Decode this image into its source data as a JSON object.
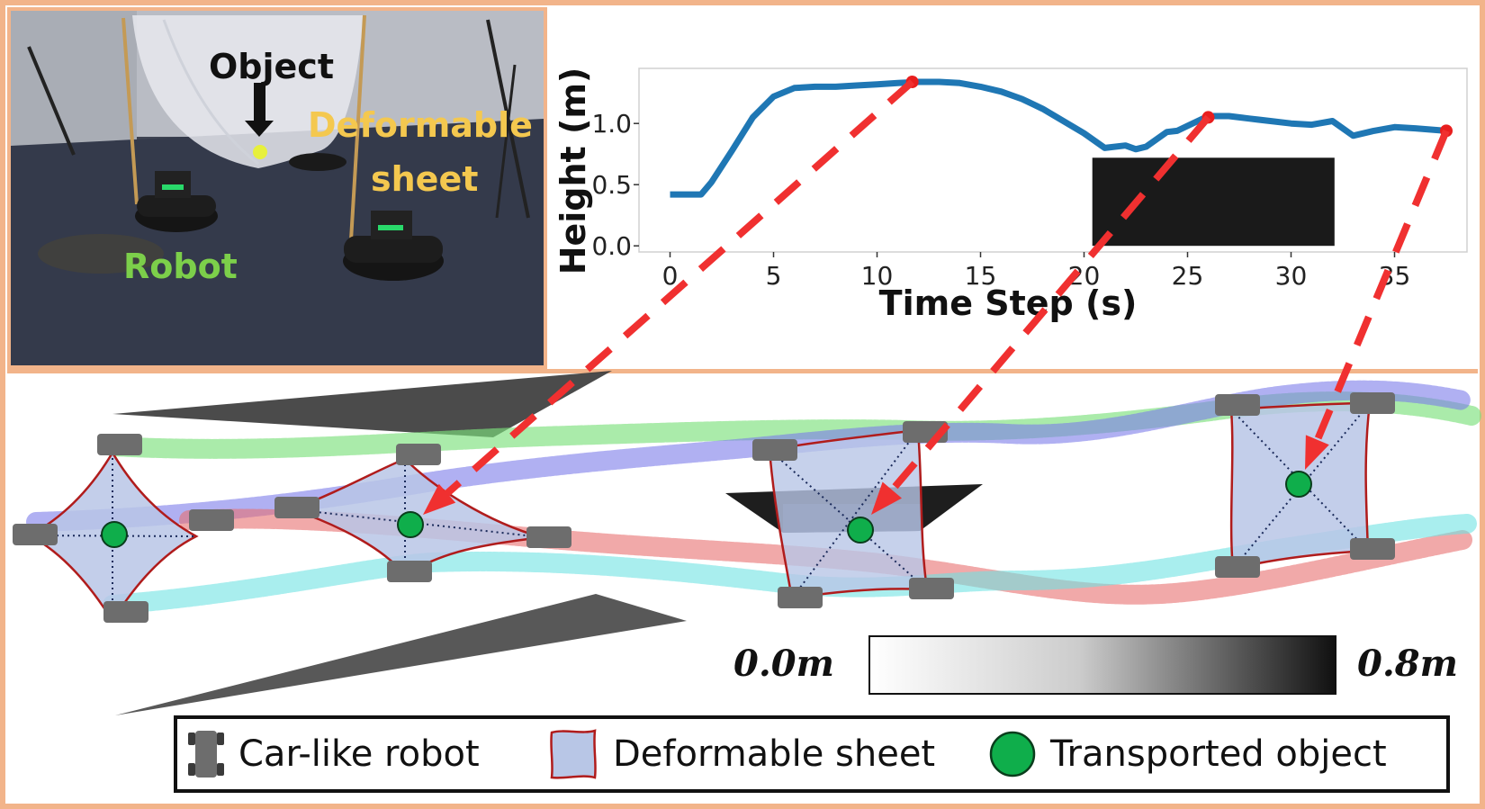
{
  "photo": {
    "object_label": "Object",
    "sheet_label_line1": "Deformable",
    "sheet_label_line2": "sheet",
    "robot_label": "Robot"
  },
  "chart_data": {
    "type": "line",
    "title": "",
    "xlabel": "Time Step (s)",
    "ylabel": "Height (m)",
    "xlim": [
      -1.5,
      38.5
    ],
    "ylim": [
      -0.05,
      1.45
    ],
    "xticks": [
      0,
      5,
      10,
      15,
      20,
      25,
      30,
      35
    ],
    "yticks": [
      0.0,
      0.5,
      1.0
    ],
    "ytick_labels": [
      "0.0",
      "0.5",
      "1.0"
    ],
    "grid": false,
    "color": "#1f77b4",
    "series": [
      {
        "x": [
          0,
          1,
          1.5,
          2,
          3,
          4,
          5,
          6,
          7,
          8,
          9,
          10,
          11,
          12,
          13,
          14,
          15,
          16,
          17,
          18,
          19,
          20,
          21,
          22,
          22.5,
          23,
          24,
          24.5,
          25,
          26,
          27,
          28,
          29,
          30,
          31,
          32,
          33,
          34,
          35,
          36,
          37.5
        ],
        "y": [
          0.42,
          0.42,
          0.42,
          0.52,
          0.78,
          1.05,
          1.22,
          1.29,
          1.3,
          1.3,
          1.31,
          1.32,
          1.33,
          1.34,
          1.34,
          1.33,
          1.3,
          1.26,
          1.2,
          1.12,
          1.02,
          0.92,
          0.8,
          0.82,
          0.79,
          0.81,
          0.93,
          0.94,
          0.98,
          1.06,
          1.06,
          1.04,
          1.02,
          1.0,
          0.99,
          1.02,
          0.9,
          0.94,
          0.97,
          0.96,
          0.94
        ]
      }
    ],
    "obstacle_box": {
      "x": [
        20.4,
        32.1
      ],
      "y": [
        0.0,
        0.72
      ],
      "color": "#1a1a1a"
    },
    "markers": [
      {
        "x": 11.7,
        "y": 1.34
      },
      {
        "x": 26.0,
        "y": 1.05
      },
      {
        "x": 37.5,
        "y": 0.94
      }
    ]
  },
  "colorbar": {
    "min_label": "0.0m",
    "max_label": "0.8m"
  },
  "legend": {
    "robot": "Car-like robot",
    "sheet": "Deformable sheet",
    "object": "Transported object"
  },
  "colors": {
    "frame": "#f2b48a",
    "trajectory_green": "#7de07d",
    "trajectory_blue": "#7b7bea",
    "trajectory_red": "#e87070",
    "trajectory_cyan": "#6fe3e3",
    "sheet_fill": "#b8c6e6",
    "sheet_outline": "#b01c1c",
    "object": "#0fae4b",
    "dashed_link": "#f03030"
  }
}
